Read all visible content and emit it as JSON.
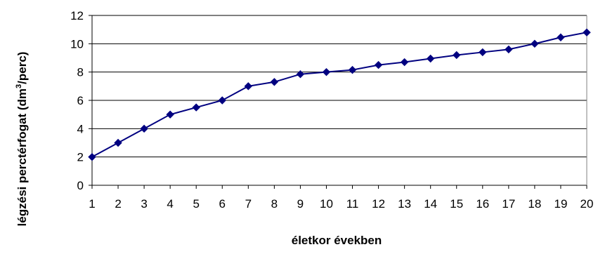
{
  "chart_data": {
    "type": "line",
    "title": "",
    "xlabel": "életkor években",
    "ylabel_main": "légzési perctérfogat (dm",
    "ylabel_sup": "3",
    "ylabel_tail": "/perc)",
    "x": [
      1,
      2,
      3,
      4,
      5,
      6,
      7,
      8,
      9,
      10,
      11,
      12,
      13,
      14,
      15,
      16,
      17,
      18,
      19,
      20
    ],
    "series": [
      {
        "values": [
          2,
          3,
          4,
          5,
          5.5,
          6,
          7,
          7.3,
          7.85,
          8,
          8.15,
          8.5,
          8.7,
          8.95,
          9.2,
          9.4,
          9.6,
          10,
          10.45,
          10.8
        ],
        "color": "#000080"
      }
    ],
    "ylim": [
      0,
      12
    ],
    "yticks": [
      0,
      2,
      4,
      6,
      8,
      10,
      12
    ],
    "grid": true,
    "legend": "none"
  }
}
